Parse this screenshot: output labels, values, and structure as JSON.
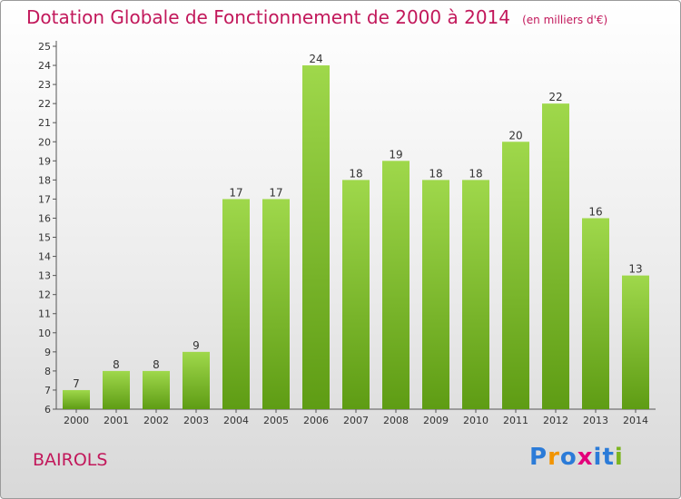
{
  "title": "Dotation Globale de Fonctionnement de 2000 à 2014",
  "subtitle": "(en milliers d'€)",
  "commune": "BAIROLS",
  "logo": {
    "letters": [
      "P",
      "r",
      "o",
      "x",
      "i",
      "t",
      "i"
    ],
    "colors": [
      "#2b7bd8",
      "#f29400",
      "#2b7bd8",
      "#e3007a",
      "#2b7bd8",
      "#2b7bd8",
      "#7cb51f"
    ]
  },
  "colors": {
    "bar_top": "#9fd84b",
    "bar_bottom": "#5e9c14",
    "title": "#c2185b"
  },
  "chart_data": {
    "type": "bar",
    "categories": [
      "2000",
      "2001",
      "2002",
      "2003",
      "2004",
      "2005",
      "2006",
      "2007",
      "2008",
      "2009",
      "2010",
      "2011",
      "2012",
      "2013",
      "2014"
    ],
    "values": [
      7,
      8,
      8,
      9,
      17,
      17,
      24,
      18,
      19,
      18,
      18,
      20,
      22,
      16,
      13
    ],
    "ylim": [
      6,
      25
    ],
    "yticks": [
      6,
      7,
      8,
      9,
      10,
      11,
      12,
      13,
      14,
      15,
      16,
      17,
      18,
      19,
      20,
      21,
      22,
      23,
      24,
      25
    ],
    "grid": false,
    "data_labels": true
  }
}
